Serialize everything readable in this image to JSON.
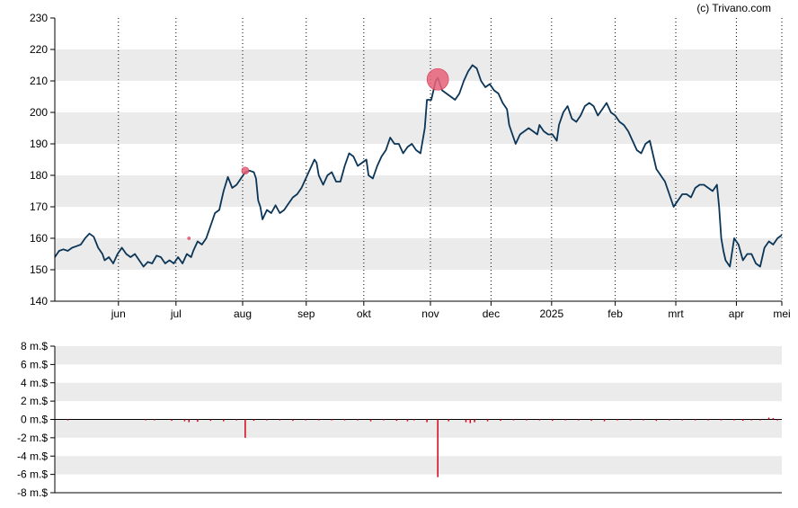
{
  "copyright": "(c) Trivano.com",
  "colors": {
    "price_line": "#0b3557",
    "band_fill": "#ebebeb",
    "marker_fill": "#e8617a",
    "volume_bar": "#d5001a",
    "axis": "#000000",
    "gridline": "#000000"
  },
  "chart_data": [
    {
      "type": "line",
      "name": "price",
      "ylim": [
        140,
        230
      ],
      "yticks": [
        140,
        150,
        160,
        170,
        180,
        190,
        200,
        210,
        220,
        230
      ],
      "ytick_labels": [
        "140",
        "150",
        "160",
        "170",
        "180",
        "190",
        "200",
        "210",
        "220",
        "230"
      ],
      "x_month_labels": [
        "jun",
        "jul",
        "aug",
        "sep",
        "okt",
        "nov",
        "dec",
        "2025",
        "feb",
        "mrt",
        "apr",
        "mei"
      ],
      "grid": "dotted vertical lines at month starts, alternating shaded horizontal bands",
      "x_index_range": [
        0,
        240
      ],
      "month_start_index": [
        21,
        40,
        62,
        83,
        102,
        124,
        144,
        164,
        185,
        205,
        225,
        240
      ],
      "series": [
        {
          "values": [
            [
              0,
              154
            ],
            [
              2,
              156
            ],
            [
              4,
              156.5
            ],
            [
              6,
              156
            ],
            [
              8,
              157
            ],
            [
              10,
              157.5
            ],
            [
              12,
              158
            ],
            [
              14,
              160
            ],
            [
              16,
              161.5
            ],
            [
              18,
              160.5
            ],
            [
              20,
              157
            ],
            [
              22,
              155
            ],
            [
              23,
              153
            ],
            [
              25,
              154
            ],
            [
              27,
              152
            ],
            [
              29,
              155
            ],
            [
              31,
              157
            ],
            [
              33,
              155
            ],
            [
              35,
              154
            ],
            [
              37,
              155
            ],
            [
              39,
              153
            ],
            [
              41,
              151
            ],
            [
              43,
              152.5
            ],
            [
              45,
              152
            ],
            [
              47,
              154.5
            ],
            [
              49,
              154
            ],
            [
              51,
              152
            ],
            [
              53,
              153
            ],
            [
              55,
              152
            ],
            [
              57,
              154
            ],
            [
              59,
              152
            ],
            [
              61,
              155
            ],
            [
              63,
              154
            ],
            [
              64,
              156
            ],
            [
              66,
              159
            ],
            [
              68,
              158
            ],
            [
              70,
              160
            ],
            [
              72,
              164
            ],
            [
              74,
              168
            ],
            [
              76,
              169
            ],
            [
              78,
              175
            ],
            [
              80,
              179.5
            ],
            [
              82,
              176
            ],
            [
              84,
              177
            ],
            [
              86,
              179
            ],
            [
              88,
              181
            ],
            [
              90,
              181.5
            ],
            [
              92,
              181
            ],
            [
              93,
              179
            ],
            [
              94,
              172
            ],
            [
              95,
              170
            ],
            [
              96,
              166
            ],
            [
              98,
              169
            ],
            [
              100,
              168
            ],
            [
              102,
              170.5
            ],
            [
              104,
              168
            ],
            [
              106,
              169
            ],
            [
              108,
              171
            ],
            [
              110,
              173
            ],
            [
              112,
              174
            ],
            [
              114,
              176
            ],
            [
              116,
              179
            ],
            [
              118,
              182
            ],
            [
              120,
              185
            ],
            [
              121,
              184
            ],
            [
              122,
              180
            ],
            [
              124,
              177
            ],
            [
              126,
              180
            ],
            [
              128,
              181
            ],
            [
              130,
              178
            ],
            [
              132,
              178
            ],
            [
              134,
              183
            ],
            [
              136,
              187
            ],
            [
              138,
              186
            ],
            [
              140,
              183
            ],
            [
              142,
              184
            ],
            [
              144,
              185
            ],
            [
              145,
              180
            ],
            [
              147,
              179
            ],
            [
              149,
              183
            ],
            [
              151,
              186
            ],
            [
              153,
              188
            ],
            [
              155,
              192
            ],
            [
              157,
              190
            ],
            [
              159,
              190
            ],
            [
              161,
              187
            ],
            [
              163,
              189
            ],
            [
              165,
              190
            ],
            [
              167,
              188
            ],
            [
              169,
              187
            ],
            [
              171,
              195
            ],
            [
              172,
              204
            ],
            [
              174,
              204
            ],
            [
              175,
              207
            ],
            [
              176,
              210
            ],
            [
              177,
              211
            ],
            [
              179,
              207
            ],
            [
              181,
              206
            ],
            [
              183,
              205
            ],
            [
              185,
              204
            ],
            [
              187,
              206
            ],
            [
              189,
              210
            ],
            [
              191,
              213
            ],
            [
              193,
              215
            ],
            [
              195,
              214
            ],
            [
              197,
              210
            ],
            [
              199,
              208
            ],
            [
              201,
              209
            ],
            [
              203,
              207
            ],
            [
              205,
              206
            ],
            [
              207,
              203
            ],
            [
              209,
              201
            ],
            [
              210,
              196
            ],
            [
              212,
              192
            ],
            [
              213,
              190
            ],
            [
              215,
              193
            ],
            [
              217,
              194
            ],
            [
              219,
              195
            ],
            [
              221,
              194
            ],
            [
              223,
              193
            ],
            [
              224,
              196
            ],
            [
              226,
              194
            ],
            [
              228,
              193
            ],
            [
              230,
              193
            ],
            [
              232,
              191
            ],
            [
              233,
              196
            ],
            [
              235,
              200
            ],
            [
              237,
              202
            ],
            [
              239,
              198
            ],
            [
              241,
              197
            ],
            [
              243,
              199
            ],
            [
              245,
              202
            ],
            [
              247,
              203
            ],
            [
              249,
              202
            ],
            [
              251,
              199
            ],
            [
              253,
              201
            ],
            [
              255,
              203
            ],
            [
              257,
              200
            ],
            [
              259,
              199
            ],
            [
              261,
              197
            ],
            [
              263,
              196
            ],
            [
              265,
              194
            ],
            [
              267,
              191
            ],
            [
              269,
              188
            ],
            [
              271,
              187
            ],
            [
              273,
              190
            ],
            [
              275,
              191
            ],
            [
              276,
              188
            ],
            [
              278,
              182
            ],
            [
              280,
              180
            ],
            [
              282,
              178
            ],
            [
              284,
              174
            ],
            [
              286,
              170
            ],
            [
              288,
              172
            ],
            [
              290,
              174
            ],
            [
              292,
              174
            ],
            [
              294,
              173
            ],
            [
              296,
              176
            ],
            [
              298,
              177
            ],
            [
              300,
              177
            ],
            [
              302,
              176
            ],
            [
              304,
              175
            ],
            [
              306,
              177
            ],
            [
              307,
              170
            ],
            [
              308,
              160
            ],
            [
              309,
              156
            ],
            [
              310,
              153
            ],
            [
              312,
              151
            ],
            [
              314,
              160
            ],
            [
              316,
              158
            ],
            [
              318,
              153
            ],
            [
              320,
              155
            ],
            [
              322,
              155
            ],
            [
              324,
              152
            ],
            [
              326,
              151
            ],
            [
              328,
              157
            ],
            [
              330,
              159
            ],
            [
              332,
              158
            ],
            [
              334,
              160
            ],
            [
              336,
              161
            ]
          ]
        }
      ],
      "markers": [
        {
          "x": 88,
          "y": 181.5,
          "size": "small"
        },
        {
          "x": 177,
          "y": 210.5,
          "size": "large"
        },
        {
          "x": 62,
          "y": 160,
          "size": "tiny"
        }
      ]
    },
    {
      "type": "bar",
      "name": "volume",
      "ylim": [
        -8,
        8
      ],
      "yticks": [
        -8,
        -6,
        -4,
        -2,
        0,
        2,
        4,
        6,
        8
      ],
      "ytick_labels": [
        "-8 m.$",
        "-6 m.$",
        "-4 m.$",
        "-2 m.$",
        "0 m.$",
        "2 m.$",
        "4 m.$",
        "6 m.$",
        "8 m.$"
      ],
      "bars": [
        {
          "x": 6,
          "value": -0.1
        },
        {
          "x": 42,
          "value": -0.1
        },
        {
          "x": 46,
          "value": -0.1
        },
        {
          "x": 54,
          "value": -0.15
        },
        {
          "x": 60,
          "value": -0.2
        },
        {
          "x": 62,
          "value": -0.3
        },
        {
          "x": 66,
          "value": -0.25
        },
        {
          "x": 72,
          "value": -0.15
        },
        {
          "x": 78,
          "value": -0.2
        },
        {
          "x": 84,
          "value": -0.1
        },
        {
          "x": 88,
          "value": -2.0
        },
        {
          "x": 92,
          "value": -0.15
        },
        {
          "x": 98,
          "value": -0.1
        },
        {
          "x": 104,
          "value": -0.1
        },
        {
          "x": 110,
          "value": -0.15
        },
        {
          "x": 116,
          "value": -0.1
        },
        {
          "x": 122,
          "value": -0.1
        },
        {
          "x": 128,
          "value": -0.1
        },
        {
          "x": 134,
          "value": -0.1
        },
        {
          "x": 140,
          "value": -0.1
        },
        {
          "x": 146,
          "value": -0.2
        },
        {
          "x": 152,
          "value": -0.1
        },
        {
          "x": 158,
          "value": -0.15
        },
        {
          "x": 163,
          "value": -0.2
        },
        {
          "x": 166,
          "value": -0.1
        },
        {
          "x": 172,
          "value": -0.3
        },
        {
          "x": 177,
          "value": -6.3
        },
        {
          "x": 182,
          "value": -0.2
        },
        {
          "x": 190,
          "value": -0.3
        },
        {
          "x": 192,
          "value": -0.4
        },
        {
          "x": 194,
          "value": -0.3
        },
        {
          "x": 200,
          "value": -0.2
        },
        {
          "x": 206,
          "value": -0.15
        },
        {
          "x": 212,
          "value": -0.1
        },
        {
          "x": 218,
          "value": -0.1
        },
        {
          "x": 224,
          "value": -0.1
        },
        {
          "x": 230,
          "value": -0.15
        },
        {
          "x": 236,
          "value": -0.1
        },
        {
          "x": 242,
          "value": -0.1
        },
        {
          "x": 248,
          "value": -0.15
        },
        {
          "x": 254,
          "value": -0.2
        },
        {
          "x": 260,
          "value": -0.1
        },
        {
          "x": 266,
          "value": -0.1
        },
        {
          "x": 272,
          "value": -0.1
        },
        {
          "x": 278,
          "value": -0.15
        },
        {
          "x": 284,
          "value": -0.1
        },
        {
          "x": 290,
          "value": -0.1
        },
        {
          "x": 296,
          "value": -0.1
        },
        {
          "x": 302,
          "value": -0.1
        },
        {
          "x": 308,
          "value": -0.1
        },
        {
          "x": 314,
          "value": -0.1
        },
        {
          "x": 318,
          "value": -0.15
        },
        {
          "x": 322,
          "value": -0.1
        },
        {
          "x": 326,
          "value": -0.1
        },
        {
          "x": 330,
          "value": 0.2
        },
        {
          "x": 332,
          "value": 0.15
        },
        {
          "x": 334,
          "value": -0.1
        }
      ]
    }
  ]
}
